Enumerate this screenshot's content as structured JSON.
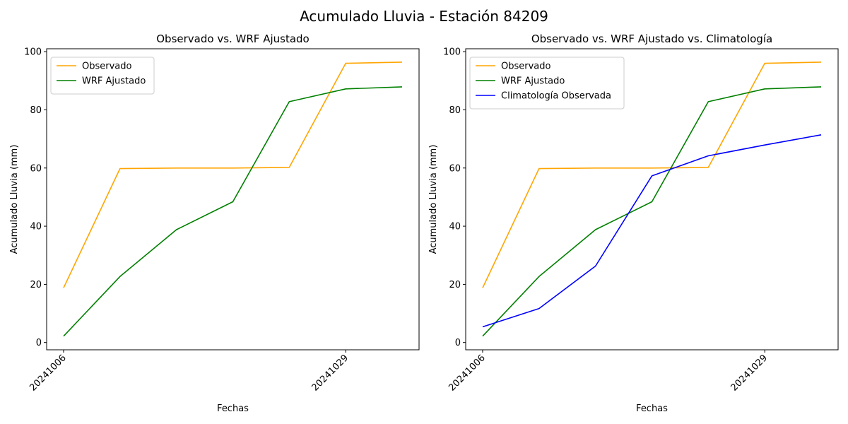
{
  "figure": {
    "title": "Acumulado Lluvia - Estación 84209"
  },
  "chart_data": [
    {
      "type": "line",
      "title": "Observado vs. WRF Ajustado",
      "xlabel": "Fechas",
      "ylabel": "Acumulado Lluvia (mm)",
      "x": [
        0,
        1,
        2,
        3,
        4,
        5,
        6
      ],
      "x_tick_labels": [
        {
          "x": 0,
          "label": "20241006"
        },
        {
          "x": 5,
          "label": "20241029"
        }
      ],
      "ylim": [
        -2.5,
        101
      ],
      "y_ticks": [
        0,
        20,
        40,
        60,
        80,
        100
      ],
      "legend_position": "upper-left",
      "series": [
        {
          "name": "Observado",
          "color": "#ffa500",
          "values": [
            18.8,
            59.8,
            60.0,
            60.0,
            60.2,
            96.0,
            96.4
          ]
        },
        {
          "name": "WRF Ajustado",
          "color": "#008000",
          "values": [
            2.2,
            22.7,
            38.8,
            48.4,
            82.8,
            87.2,
            87.9
          ]
        }
      ]
    },
    {
      "type": "line",
      "title": "Observado vs. WRF Ajustado vs. Climatología",
      "xlabel": "Fechas",
      "ylabel": "Acumulado Lluvia (mm)",
      "x": [
        0,
        1,
        2,
        3,
        4,
        5,
        6
      ],
      "x_tick_labels": [
        {
          "x": 0,
          "label": "20241006"
        },
        {
          "x": 5,
          "label": "20241029"
        }
      ],
      "ylim": [
        -2.5,
        101
      ],
      "y_ticks": [
        0,
        20,
        40,
        60,
        80,
        100
      ],
      "legend_position": "upper-left",
      "series": [
        {
          "name": "Observado",
          "color": "#ffa500",
          "values": [
            18.8,
            59.8,
            60.0,
            60.0,
            60.2,
            96.0,
            96.4
          ]
        },
        {
          "name": "WRF Ajustado",
          "color": "#008000",
          "values": [
            2.2,
            22.7,
            38.8,
            48.4,
            82.8,
            87.2,
            87.9
          ]
        },
        {
          "name": "Climatología Observada",
          "color": "#0000ff",
          "values": [
            5.4,
            11.7,
            26.3,
            57.3,
            64.2,
            67.9,
            71.4
          ]
        }
      ]
    }
  ]
}
